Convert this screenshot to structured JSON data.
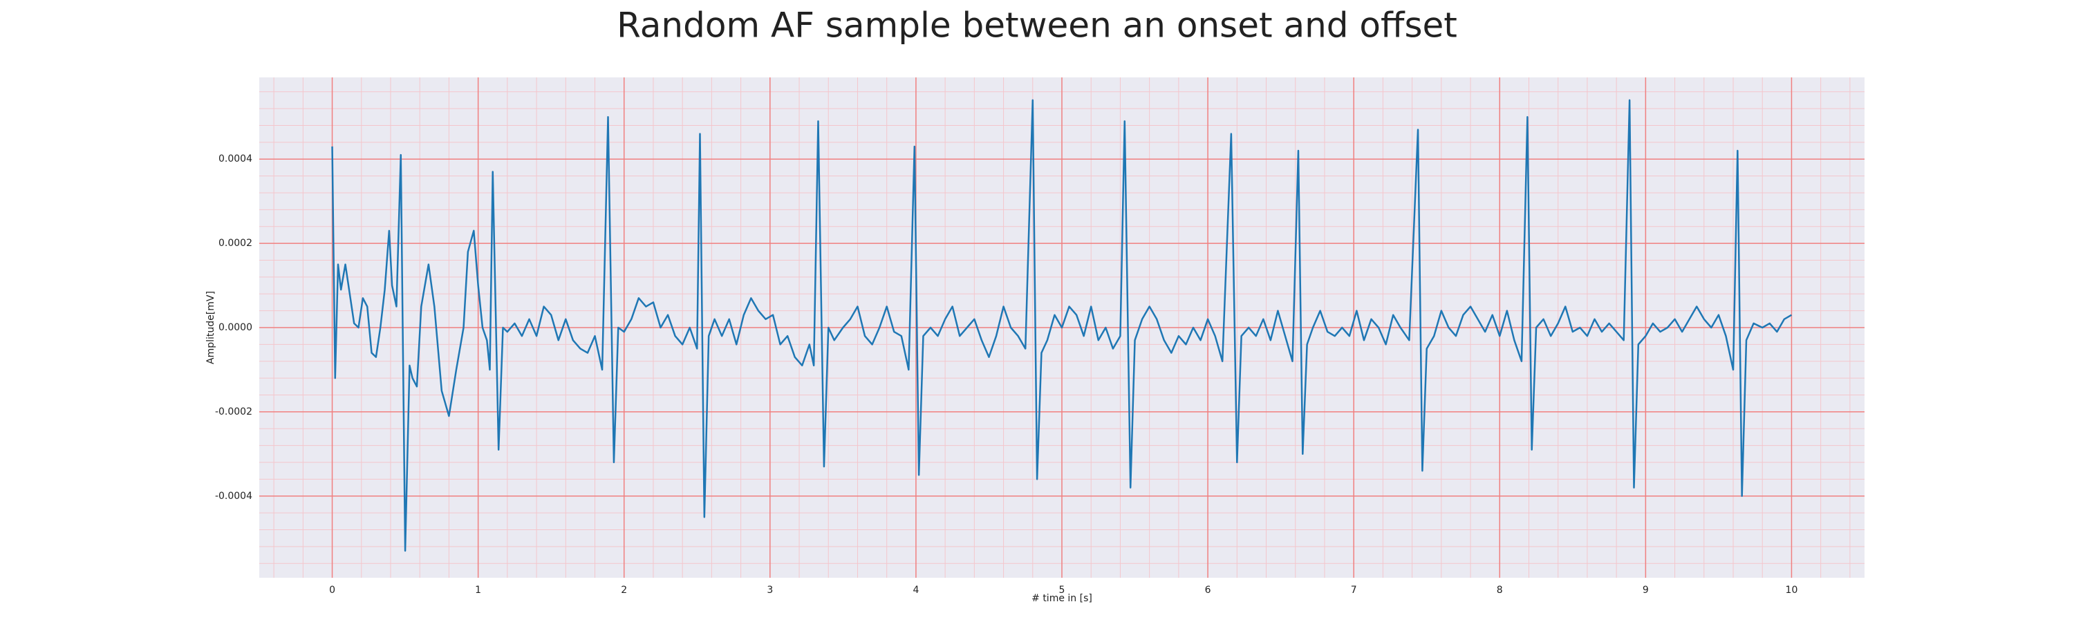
{
  "chart_data": {
    "type": "line",
    "title": "Random AF sample between an onset and offset",
    "xlabel": "# time in [s]",
    "ylabel": "Amplitude[mV]",
    "color": "#1f77b4",
    "grid": true,
    "grid_color": "#f08080",
    "minor_grid_color": "#f4c6cc",
    "minor_grid_divisions": 5,
    "xlim": [
      -0.5,
      10.5
    ],
    "ylim": [
      -0.000594,
      0.000594
    ],
    "xticks": [
      0,
      1,
      2,
      3,
      4,
      5,
      6,
      7,
      8,
      9,
      10
    ],
    "yticks": [
      -0.0004,
      -0.0002,
      {
        "value": 0,
        "label": "0.0000"
      },
      0.0002,
      0.0004
    ],
    "x": [
      0.0,
      0.02,
      0.04,
      0.06,
      0.09,
      0.12,
      0.15,
      0.18,
      0.21,
      0.24,
      0.27,
      0.3,
      0.33,
      0.36,
      0.39,
      0.41,
      0.44,
      0.47,
      0.5,
      0.53,
      0.55,
      0.58,
      0.61,
      0.66,
      0.7,
      0.75,
      0.8,
      0.85,
      0.9,
      0.93,
      0.97,
      1.0,
      1.03,
      1.06,
      1.08,
      1.1,
      1.14,
      1.17,
      1.2,
      1.25,
      1.3,
      1.35,
      1.4,
      1.45,
      1.5,
      1.55,
      1.6,
      1.65,
      1.7,
      1.75,
      1.8,
      1.85,
      1.89,
      1.93,
      1.96,
      2.0,
      2.05,
      2.1,
      2.15,
      2.2,
      2.25,
      2.3,
      2.35,
      2.4,
      2.45,
      2.5,
      2.52,
      2.55,
      2.58,
      2.62,
      2.67,
      2.72,
      2.77,
      2.82,
      2.87,
      2.92,
      2.97,
      3.02,
      3.07,
      3.12,
      3.17,
      3.22,
      3.27,
      3.3,
      3.33,
      3.37,
      3.4,
      3.44,
      3.5,
      3.55,
      3.6,
      3.65,
      3.7,
      3.75,
      3.8,
      3.85,
      3.9,
      3.95,
      3.99,
      4.02,
      4.05,
      4.1,
      4.15,
      4.2,
      4.25,
      4.3,
      4.35,
      4.4,
      4.45,
      4.5,
      4.55,
      4.6,
      4.65,
      4.7,
      4.75,
      4.8,
      4.83,
      4.86,
      4.9,
      4.95,
      5.0,
      5.05,
      5.1,
      5.15,
      5.2,
      5.25,
      5.3,
      5.35,
      5.4,
      5.43,
      5.47,
      5.5,
      5.55,
      5.6,
      5.65,
      5.7,
      5.75,
      5.8,
      5.85,
      5.9,
      5.95,
      6.0,
      6.05,
      6.1,
      6.16,
      6.2,
      6.23,
      6.28,
      6.33,
      6.38,
      6.43,
      6.48,
      6.53,
      6.58,
      6.62,
      6.65,
      6.68,
      6.72,
      6.77,
      6.82,
      6.87,
      6.92,
      6.97,
      7.02,
      7.07,
      7.12,
      7.17,
      7.22,
      7.27,
      7.32,
      7.38,
      7.44,
      7.47,
      7.5,
      7.55,
      7.6,
      7.65,
      7.7,
      7.75,
      7.8,
      7.85,
      7.9,
      7.95,
      8.0,
      8.05,
      8.1,
      8.15,
      8.19,
      8.22,
      8.25,
      8.3,
      8.35,
      8.4,
      8.45,
      8.5,
      8.55,
      8.6,
      8.65,
      8.7,
      8.75,
      8.8,
      8.85,
      8.89,
      8.92,
      8.95,
      9.0,
      9.05,
      9.1,
      9.15,
      9.2,
      9.25,
      9.3,
      9.35,
      9.4,
      9.45,
      9.5,
      9.55,
      9.6,
      9.63,
      9.66,
      9.69,
      9.74,
      9.8,
      9.85,
      9.9,
      9.95,
      10.0
    ],
    "values": [
      0.00043,
      -0.00012,
      0.00015,
      9e-05,
      0.00015,
      8e-05,
      1e-05,
      0.0,
      7e-05,
      5e-05,
      -6e-05,
      -7e-05,
      0.0,
      9e-05,
      0.00023,
      0.0001,
      5e-05,
      0.00041,
      -0.00053,
      -9e-05,
      -0.00012,
      -0.00014,
      5e-05,
      0.00015,
      5e-05,
      -0.00015,
      -0.00021,
      -0.0001,
      0.0,
      0.00018,
      0.00023,
      0.0001,
      0.0,
      -3e-05,
      -0.0001,
      0.00037,
      -0.00029,
      0.0,
      -1e-05,
      1e-05,
      -2e-05,
      2e-05,
      -2e-05,
      5e-05,
      3e-05,
      -3e-05,
      2e-05,
      -3e-05,
      -5e-05,
      -6e-05,
      -2e-05,
      -0.0001,
      0.0005,
      -0.00032,
      0.0,
      -1e-05,
      2e-05,
      7e-05,
      5e-05,
      6e-05,
      0.0,
      3e-05,
      -2e-05,
      -4e-05,
      0.0,
      -5e-05,
      0.00046,
      -0.00045,
      -2e-05,
      2e-05,
      -2e-05,
      2e-05,
      -4e-05,
      3e-05,
      7e-05,
      4e-05,
      2e-05,
      3e-05,
      -4e-05,
      -2e-05,
      -7e-05,
      -9e-05,
      -4e-05,
      -9e-05,
      0.00049,
      -0.00033,
      0.0,
      -3e-05,
      0.0,
      2e-05,
      5e-05,
      -2e-05,
      -4e-05,
      0.0,
      5e-05,
      -1e-05,
      -2e-05,
      -0.0001,
      0.00043,
      -0.00035,
      -2e-05,
      0.0,
      -2e-05,
      2e-05,
      5e-05,
      -2e-05,
      0.0,
      2e-05,
      -3e-05,
      -7e-05,
      -2e-05,
      5e-05,
      0.0,
      -2e-05,
      -5e-05,
      0.00054,
      -0.00036,
      -6e-05,
      -3e-05,
      3e-05,
      0.0,
      5e-05,
      3e-05,
      -2e-05,
      5e-05,
      -3e-05,
      0.0,
      -5e-05,
      -2e-05,
      0.00049,
      -0.00038,
      -3e-05,
      2e-05,
      5e-05,
      2e-05,
      -3e-05,
      -6e-05,
      -2e-05,
      -4e-05,
      0.0,
      -3e-05,
      2e-05,
      -2e-05,
      -8e-05,
      0.00046,
      -0.00032,
      -2e-05,
      0.0,
      -2e-05,
      2e-05,
      -3e-05,
      4e-05,
      -2e-05,
      -8e-05,
      0.00042,
      -0.0003,
      -4e-05,
      0.0,
      4e-05,
      -1e-05,
      -2e-05,
      0.0,
      -2e-05,
      4e-05,
      -3e-05,
      2e-05,
      0.0,
      -4e-05,
      3e-05,
      0.0,
      -3e-05,
      0.00047,
      -0.00034,
      -5e-05,
      -2e-05,
      4e-05,
      0.0,
      -2e-05,
      3e-05,
      5e-05,
      2e-05,
      -1e-05,
      3e-05,
      -2e-05,
      4e-05,
      -3e-05,
      -8e-05,
      0.0005,
      -0.00029,
      0.0,
      2e-05,
      -2e-05,
      1e-05,
      5e-05,
      -1e-05,
      0.0,
      -2e-05,
      2e-05,
      -1e-05,
      1e-05,
      -1e-05,
      -3e-05,
      0.00054,
      -0.00038,
      -4e-05,
      -2e-05,
      1e-05,
      -1e-05,
      0.0,
      2e-05,
      -1e-05,
      2e-05,
      5e-05,
      2e-05,
      0.0,
      3e-05,
      -2e-05,
      -0.0001,
      0.00042,
      -0.0004,
      -3e-05,
      1e-05,
      0.0,
      1e-05,
      -1e-05,
      2e-05,
      3e-05
    ]
  }
}
